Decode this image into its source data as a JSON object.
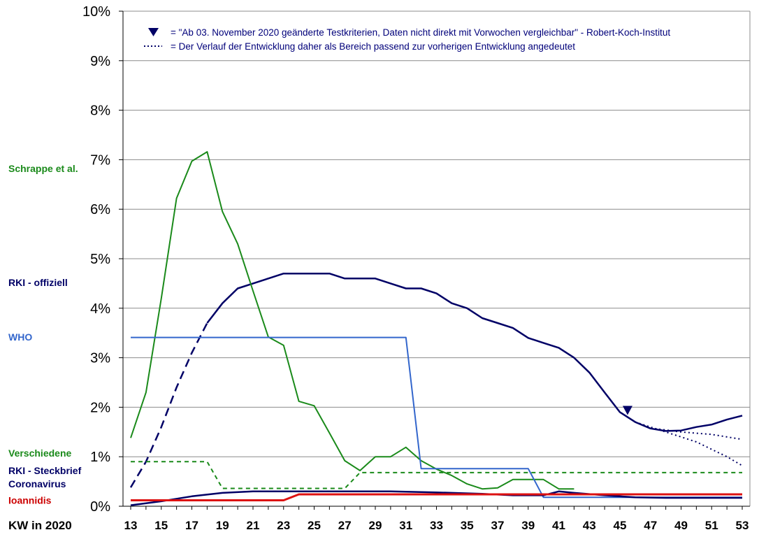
{
  "chart_data": {
    "type": "line",
    "xlabel": "KW in 2020",
    "ylim": [
      0,
      10
    ],
    "y_ticks": [
      "0%",
      "1%",
      "2%",
      "3%",
      "4%",
      "5%",
      "6%",
      "7%",
      "8%",
      "9%",
      "10%"
    ],
    "x_range": [
      13,
      53
    ],
    "x_ticks": [
      "13",
      "15",
      "17",
      "19",
      "21",
      "23",
      "25",
      "27",
      "29",
      "31",
      "33",
      "35",
      "37",
      "39",
      "41",
      "43",
      "45",
      "47",
      "49",
      "51",
      "53"
    ],
    "grid": "horizontal",
    "annotations": [
      {
        "symbol": "▼",
        "text": "=  \"Ab 03. November 2020 geänderte Testkriterien, Daten nicht direkt mit Vorwochen vergleichbar\" - Robert-Koch-Institut"
      },
      {
        "symbol": "dotted-line",
        "text": "=   Der Verlauf der Entwicklung daher als Bereich passend zur vorherigen Entwicklung angedeutet"
      }
    ],
    "marker": {
      "symbol": "▼",
      "x": 45.5,
      "y": 1.9
    },
    "side_labels": [
      {
        "text": "Schrappe et al.",
        "color": "#1a8a1a",
        "y": 6.75
      },
      {
        "text": "RKI - offiziell",
        "color": "#000066",
        "y": 4.45
      },
      {
        "text": "WHO",
        "color": "#3366cc",
        "y": 3.35
      },
      {
        "text": "Verschiedene",
        "color": "#1a8a1a",
        "y": 1.0
      },
      {
        "text": "RKI - Steckbrief",
        "color": "#000066",
        "y": 0.65
      },
      {
        "text": "Coronavirus",
        "color": "#000066",
        "y": 0.38
      },
      {
        "text": "Ioannidis",
        "color": "#cc0000",
        "y": 0.05
      }
    ],
    "series": [
      {
        "key": "rki_dashed",
        "color": "#000066",
        "width": 2.5,
        "dash": "12,7",
        "points": [
          [
            13,
            0.38
          ],
          [
            14,
            0.9
          ],
          [
            15,
            1.6
          ],
          [
            16,
            2.4
          ],
          [
            17,
            3.1
          ],
          [
            18,
            3.7
          ]
        ]
      },
      {
        "key": "rki_main",
        "color": "#000066",
        "width": 2.5,
        "dash": "",
        "points": [
          [
            18,
            3.7
          ],
          [
            19,
            4.1
          ],
          [
            20,
            4.4
          ],
          [
            21,
            4.5
          ],
          [
            22,
            4.6
          ],
          [
            23,
            4.7
          ],
          [
            24,
            4.7
          ],
          [
            25,
            4.7
          ],
          [
            26,
            4.7
          ],
          [
            27,
            4.6
          ],
          [
            28,
            4.6
          ],
          [
            29,
            4.6
          ],
          [
            30,
            4.5
          ],
          [
            31,
            4.4
          ],
          [
            32,
            4.4
          ],
          [
            33,
            4.3
          ],
          [
            34,
            4.1
          ],
          [
            35,
            4.0
          ],
          [
            36,
            3.8
          ],
          [
            37,
            3.7
          ],
          [
            38,
            3.6
          ],
          [
            39,
            3.4
          ],
          [
            40,
            3.3
          ],
          [
            41,
            3.2
          ],
          [
            42,
            3.0
          ],
          [
            43,
            2.7
          ],
          [
            44,
            2.3
          ],
          [
            45,
            1.9
          ],
          [
            46,
            1.7
          ],
          [
            47,
            1.57
          ],
          [
            48,
            1.52
          ],
          [
            49,
            1.53
          ],
          [
            50,
            1.6
          ],
          [
            51,
            1.65
          ],
          [
            52,
            1.75
          ],
          [
            53,
            1.83
          ]
        ]
      },
      {
        "key": "rki_dotted_upper",
        "color": "#000066",
        "width": 2,
        "dash": "2,4",
        "points": [
          [
            46,
            1.7
          ],
          [
            47,
            1.58
          ],
          [
            49,
            1.5
          ],
          [
            51,
            1.45
          ],
          [
            53,
            1.35
          ]
        ]
      },
      {
        "key": "rki_dotted_lower",
        "color": "#000066",
        "width": 2,
        "dash": "2,4",
        "points": [
          [
            46,
            1.7
          ],
          [
            48,
            1.5
          ],
          [
            50,
            1.3
          ],
          [
            52,
            1.0
          ],
          [
            53,
            0.82
          ]
        ]
      },
      {
        "key": "schrappe",
        "color": "#1a8a1a",
        "width": 2,
        "dash": "",
        "points": [
          [
            13,
            1.38
          ],
          [
            14,
            2.3
          ],
          [
            15,
            4.2
          ],
          [
            16,
            6.22
          ],
          [
            17,
            6.97
          ],
          [
            18,
            7.16
          ],
          [
            19,
            5.95
          ],
          [
            20,
            5.3
          ],
          [
            21,
            4.35
          ],
          [
            22,
            3.42
          ],
          [
            23,
            3.25
          ],
          [
            24,
            2.12
          ],
          [
            25,
            2.03
          ],
          [
            26,
            1.48
          ],
          [
            27,
            0.92
          ],
          [
            28,
            0.72
          ],
          [
            29,
            1.0
          ],
          [
            30,
            1.0
          ],
          [
            31,
            1.19
          ],
          [
            32,
            0.92
          ],
          [
            33,
            0.75
          ],
          [
            34,
            0.62
          ],
          [
            35,
            0.45
          ],
          [
            36,
            0.35
          ],
          [
            37,
            0.37
          ],
          [
            38,
            0.54
          ],
          [
            39,
            0.54
          ],
          [
            40,
            0.54
          ],
          [
            41,
            0.35
          ],
          [
            42,
            0.35
          ]
        ]
      },
      {
        "key": "verschiedene",
        "color": "#1a8a1a",
        "width": 2,
        "dash": "6,5",
        "points": [
          [
            13,
            0.9
          ],
          [
            18,
            0.9
          ],
          [
            19,
            0.36
          ],
          [
            27,
            0.36
          ],
          [
            28,
            0.68
          ],
          [
            53,
            0.68
          ]
        ]
      },
      {
        "key": "who",
        "color": "#3366cc",
        "width": 2,
        "dash": "",
        "points": [
          [
            13,
            3.41
          ],
          [
            31,
            3.41
          ],
          [
            32,
            0.76
          ],
          [
            39,
            0.76
          ],
          [
            40,
            0.18
          ],
          [
            53,
            0.18
          ]
        ]
      },
      {
        "key": "steckbrief",
        "color": "#000066",
        "width": 2.5,
        "dash": "",
        "points": [
          [
            13,
            0.02
          ],
          [
            15,
            0.1
          ],
          [
            17,
            0.2
          ],
          [
            19,
            0.27
          ],
          [
            21,
            0.3
          ],
          [
            24,
            0.3
          ],
          [
            27,
            0.3
          ],
          [
            30,
            0.3
          ],
          [
            33,
            0.28
          ],
          [
            36,
            0.25
          ],
          [
            38,
            0.22
          ],
          [
            40,
            0.22
          ],
          [
            41,
            0.3
          ],
          [
            42,
            0.27
          ],
          [
            44,
            0.22
          ],
          [
            46,
            0.18
          ],
          [
            48,
            0.17
          ],
          [
            50,
            0.17
          ],
          [
            53,
            0.17
          ]
        ]
      },
      {
        "key": "ioannidis",
        "color": "#dd1111",
        "width": 3,
        "dash": "",
        "points": [
          [
            13,
            0.12
          ],
          [
            23,
            0.12
          ],
          [
            24,
            0.24
          ],
          [
            53,
            0.24
          ]
        ]
      }
    ]
  }
}
